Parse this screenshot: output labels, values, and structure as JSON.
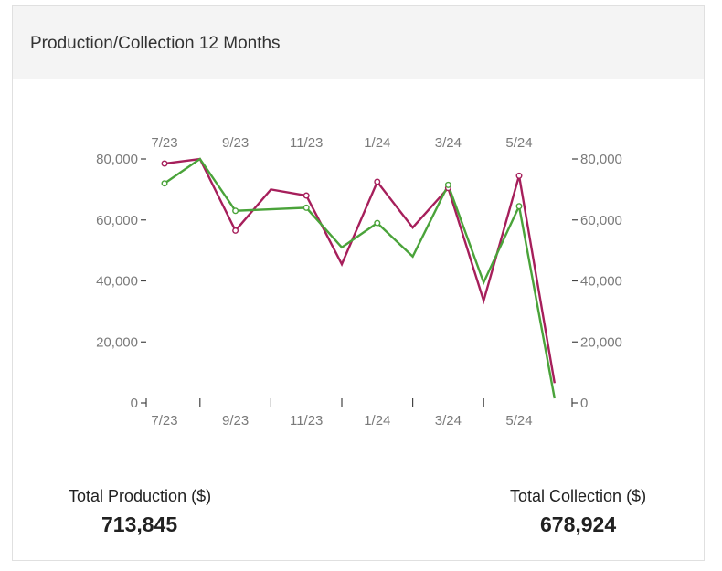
{
  "card": {
    "title": "Production/Collection 12 Months"
  },
  "totals": {
    "production_label": "Total Production ($)",
    "production_value": "713,845",
    "collection_label": "Total Collection ($)",
    "collection_value": "678,924"
  },
  "colors": {
    "production": "#a61f5b",
    "collection": "#4aa33a",
    "axis": "#444444",
    "tick_text": "#7a7a7a"
  },
  "chart_data": {
    "type": "line",
    "x": [
      "7/23",
      "8/23",
      "9/23",
      "10/23",
      "11/23",
      "12/23",
      "1/24",
      "2/24",
      "3/24",
      "4/24",
      "5/24",
      "6/24"
    ],
    "x_tick_labels": [
      "7/23",
      "9/23",
      "11/23",
      "1/24",
      "3/24",
      "5/24"
    ],
    "y_tick_labels": [
      "0",
      "20,000",
      "40,000",
      "60,000",
      "80,000"
    ],
    "ylim": [
      0,
      80000
    ],
    "series": [
      {
        "values": [
          78500,
          80000,
          56500,
          70000,
          68000,
          45500,
          72500,
          57500,
          70500,
          33500,
          74500,
          6500
        ],
        "color": "#a61f5b",
        "markers": [
          0,
          2,
          4,
          6,
          8,
          10
        ]
      },
      {
        "values": [
          72000,
          80000,
          63000,
          63500,
          64000,
          51000,
          59000,
          48000,
          71500,
          39500,
          64500,
          1500
        ],
        "color": "#4aa33a",
        "markers": [
          0,
          2,
          4,
          6,
          8,
          10
        ]
      }
    ]
  }
}
